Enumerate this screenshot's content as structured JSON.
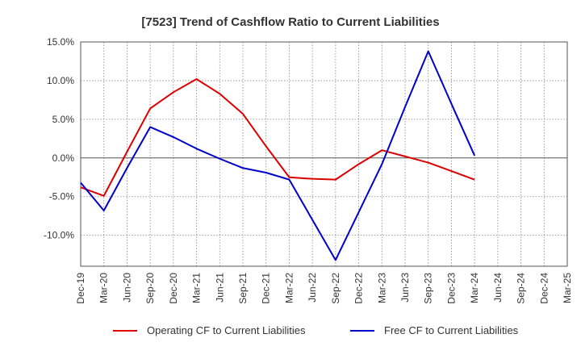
{
  "chart_data": {
    "type": "line",
    "title": "[7523]  Trend of Cashflow Ratio to Current Liabilities",
    "xlabel": "",
    "ylabel": "",
    "x": [
      "Dec-19",
      "Mar-20",
      "Jun-20",
      "Sep-20",
      "Dec-20",
      "Mar-21",
      "Jun-21",
      "Sep-21",
      "Dec-21",
      "Mar-22",
      "Jun-22",
      "Sep-22",
      "Dec-22",
      "Mar-23",
      "Jun-23",
      "Sep-23",
      "Dec-23",
      "Mar-24",
      "Jun-24",
      "Sep-24",
      "Dec-24",
      "Mar-25"
    ],
    "ylim": [
      -14.0,
      15.0
    ],
    "yticks": [
      15.0,
      10.0,
      5.0,
      0.0,
      -5.0,
      -10.0
    ],
    "ytick_labels": [
      "15.0%",
      "10.0%",
      "5.0%",
      "0.0%",
      "-5.0%",
      "-10.0%"
    ],
    "grid": true,
    "legend_position": "bottom",
    "series": [
      {
        "name": "Operating CF to Current Liabilities",
        "color": "#dd0000",
        "values": [
          -3.8,
          -4.9,
          0.8,
          6.4,
          8.5,
          10.2,
          8.3,
          5.7,
          1.5,
          -2.5,
          -2.7,
          -2.8,
          -0.8,
          1.0,
          0.2,
          -0.6,
          -1.7,
          -2.8,
          null,
          null,
          null,
          null
        ]
      },
      {
        "name": "Free CF to Current Liabilities",
        "color": "#0000cc",
        "values": [
          -3.2,
          -6.8,
          -1.3,
          4.0,
          2.7,
          1.2,
          -0.1,
          -1.3,
          -1.9,
          -2.8,
          -8.0,
          -13.2,
          -7.0,
          -0.8,
          6.6,
          13.8,
          7.0,
          0.3,
          null,
          null,
          null,
          null
        ]
      }
    ]
  }
}
